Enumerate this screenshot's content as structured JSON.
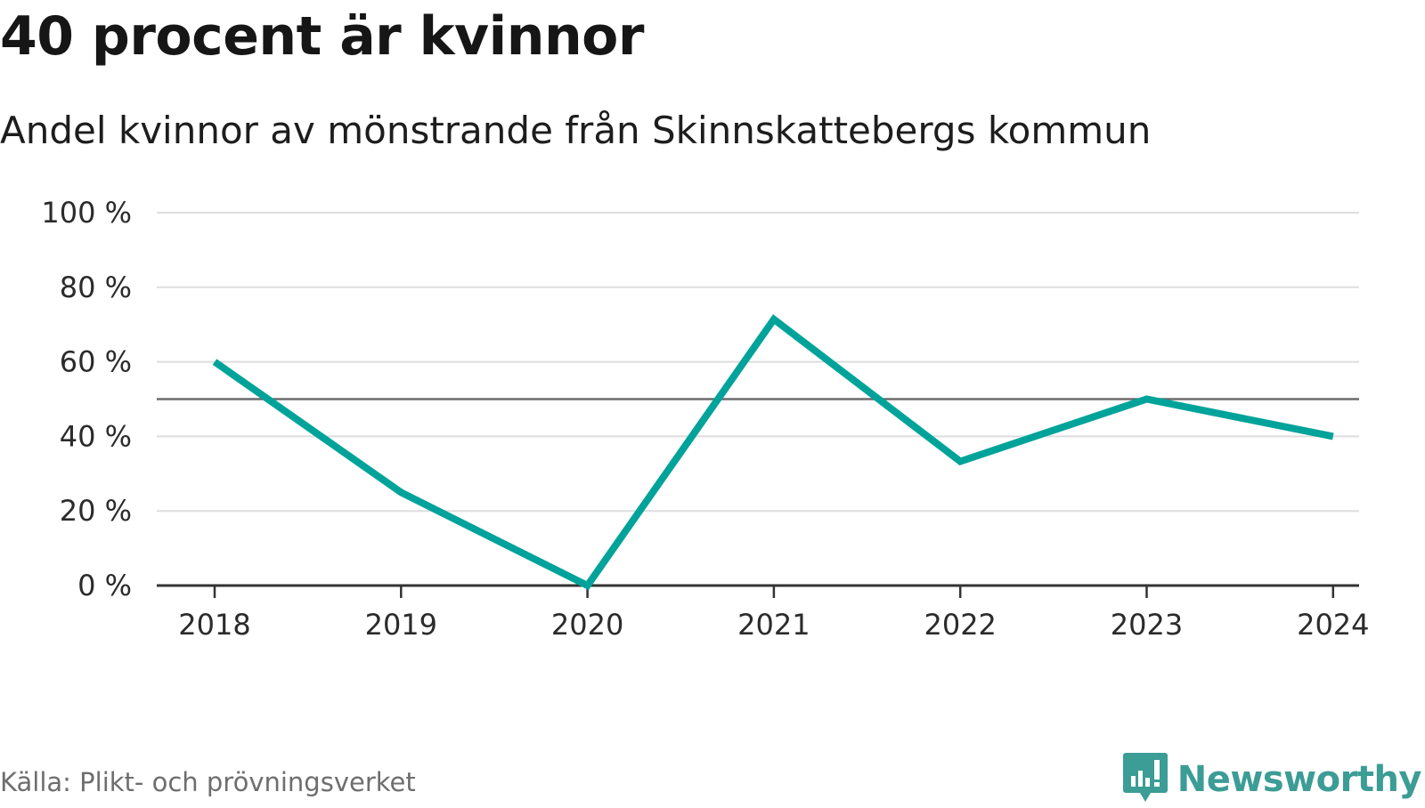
{
  "header": {
    "title": "40 procent är kvinnor",
    "subtitle": "Andel kvinnor av mönstrande från Skinnskattebergs kommun"
  },
  "footer": {
    "source": "Källa: Plikt- och prövningsverket",
    "brand": "Newsworthy",
    "brand_icon": "newsworthy-logo-icon"
  },
  "colors": {
    "line": "#00a39a",
    "reference_line": "#6b6b6b",
    "grid": "#dedede",
    "axis": "#333333",
    "brand": "#3c9c96"
  },
  "chart_data": {
    "type": "line",
    "title": "40 procent är kvinnor",
    "subtitle": "Andel kvinnor av mönstrande från Skinnskattebergs kommun",
    "xlabel": "",
    "ylabel": "",
    "categories": [
      "2018",
      "2019",
      "2020",
      "2021",
      "2022",
      "2023",
      "2024"
    ],
    "series": [
      {
        "values": [
          60,
          25,
          0,
          71.4,
          33.3,
          50,
          40
        ]
      }
    ],
    "reference_line": 50,
    "ylim": [
      0,
      100
    ],
    "yticks": [
      0,
      20,
      40,
      60,
      80,
      100
    ],
    "ytick_labels": [
      "0 %",
      "20 %",
      "40 %",
      "60 %",
      "80 %",
      "100 %"
    ],
    "grid": true,
    "legend": "none"
  }
}
